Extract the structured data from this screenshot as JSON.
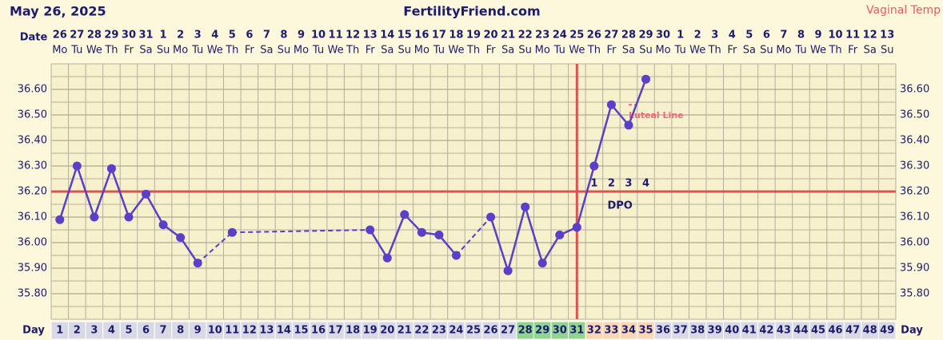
{
  "chart_data": {
    "type": "line",
    "title": "FertilityFriend.com",
    "date": "May 26, 2025",
    "temp_method": "Vaginal Temp",
    "date_label": "Date",
    "day_label": "Day",
    "dates": [
      "26",
      "27",
      "28",
      "29",
      "30",
      "31",
      "1",
      "2",
      "3",
      "4",
      "5",
      "6",
      "7",
      "8",
      "9",
      "10",
      "11",
      "12",
      "13",
      "14",
      "15",
      "16",
      "17",
      "18",
      "19",
      "20",
      "21",
      "22",
      "23",
      "24",
      "25",
      "26",
      "27",
      "28",
      "29",
      "30",
      "1",
      "2",
      "3",
      "4",
      "5",
      "6",
      "7",
      "8",
      "9",
      "10",
      "11",
      "12",
      "13"
    ],
    "weekdays": [
      "Mo",
      "Tu",
      "We",
      "Th",
      "Fr",
      "Sa",
      "Su",
      "Mo",
      "Tu",
      "We",
      "Th",
      "Fr",
      "Sa",
      "Su",
      "Mo",
      "Tu",
      "We",
      "Th",
      "Fr",
      "Sa",
      "Su",
      "Mo",
      "Tu",
      "We",
      "Th",
      "Fr",
      "Sa",
      "Su",
      "Mo",
      "Tu",
      "We",
      "Th",
      "Fr",
      "Sa",
      "Su",
      "Mo",
      "Tu",
      "We",
      "Th",
      "Fr",
      "Sa",
      "Su",
      "Mo",
      "Tu",
      "We",
      "Th",
      "Fr",
      "Sa",
      "Su"
    ],
    "x": [
      1,
      2,
      3,
      4,
      5,
      6,
      7,
      8,
      9,
      10,
      11,
      12,
      13,
      14,
      15,
      16,
      17,
      18,
      19,
      20,
      21,
      22,
      23,
      24,
      25,
      26,
      27,
      28,
      29,
      30,
      31,
      32,
      33,
      34,
      35,
      36,
      37,
      38,
      39,
      40,
      41,
      42,
      43,
      44,
      45,
      46,
      47,
      48,
      49
    ],
    "xlim": [
      0.5,
      49.5
    ],
    "series": [
      {
        "name": "Temperature",
        "color": "#5a3fc8",
        "values": [
          36.09,
          36.3,
          36.1,
          36.29,
          36.1,
          36.19,
          36.07,
          36.02,
          35.92,
          null,
          36.04,
          null,
          null,
          null,
          null,
          null,
          null,
          null,
          36.05,
          35.94,
          36.11,
          36.04,
          36.03,
          35.95,
          null,
          36.1,
          35.89,
          36.14,
          35.92,
          36.03,
          36.06,
          36.3,
          36.54,
          36.46,
          36.64,
          null,
          null,
          null,
          null,
          null,
          null,
          null,
          null,
          null,
          null,
          null,
          null,
          null,
          null
        ]
      }
    ],
    "ylim": [
      35.7,
      36.7
    ],
    "yticks": [
      {
        "value": 35.8,
        "label": "35.80"
      },
      {
        "value": 35.9,
        "label": "35.90"
      },
      {
        "value": 36.0,
        "label": "36.00"
      },
      {
        "value": 36.1,
        "label": "36.10"
      },
      {
        "value": 36.2,
        "label": "36.20"
      },
      {
        "value": 36.3,
        "label": "36.30"
      },
      {
        "value": 36.4,
        "label": "36.40"
      },
      {
        "value": 36.5,
        "label": "36.50"
      },
      {
        "value": 36.6,
        "label": "36.60"
      }
    ],
    "grid": true,
    "coverline": 36.2,
    "ovulation_day": 31,
    "marker_color": "#d9534f",
    "fertile_days": [
      28,
      29,
      30,
      31
    ],
    "fertile_color": "#8fd58f",
    "day_color": "#d9d9e6",
    "dpo": {
      "days": [
        32,
        33,
        34,
        35
      ],
      "labels": [
        "1",
        "2",
        "3",
        "4"
      ],
      "label": "DPO",
      "color": "#fbd6b3"
    },
    "luteal_line": {
      "label": "Luteal Line",
      "value": 36.54,
      "days": [
        34,
        35
      ],
      "color": "#f06a7a"
    }
  }
}
